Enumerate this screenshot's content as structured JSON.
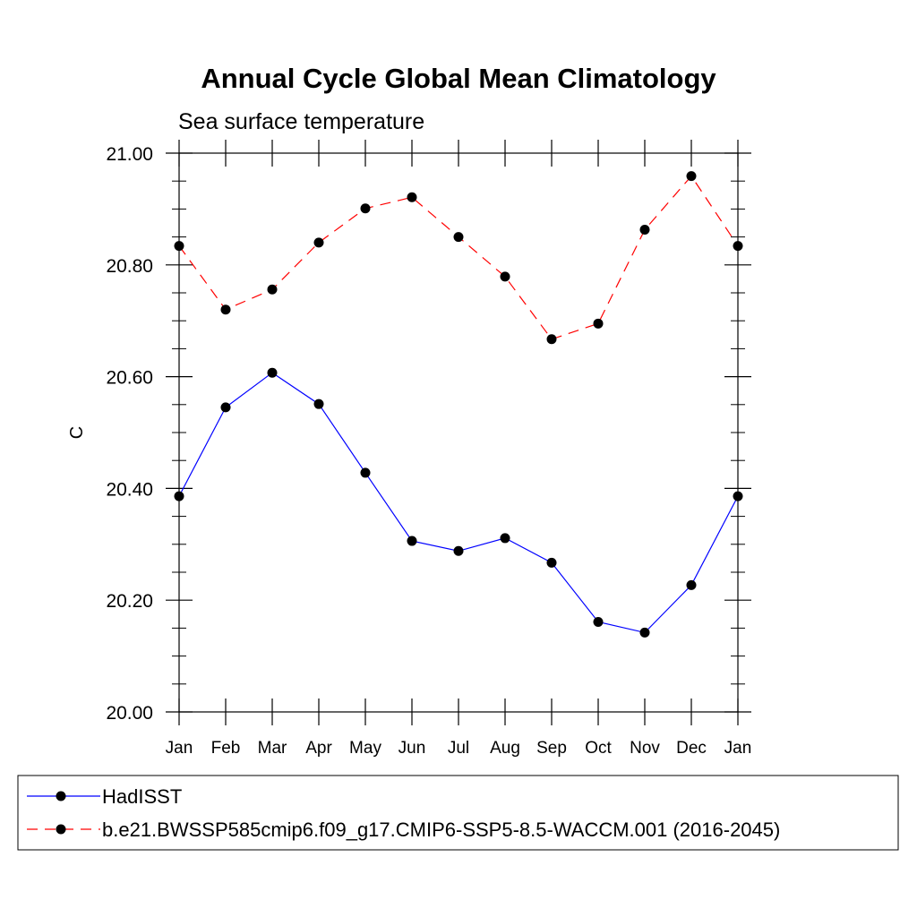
{
  "chart_data": {
    "type": "line",
    "title": "Annual Cycle Global Mean Climatology",
    "subtitle": "Sea surface temperature",
    "xlabel": "",
    "ylabel": "C",
    "categories": [
      "Jan",
      "Feb",
      "Mar",
      "Apr",
      "May",
      "Jun",
      "Jul",
      "Aug",
      "Sep",
      "Oct",
      "Nov",
      "Dec",
      "Jan"
    ],
    "ylim": [
      20.0,
      21.0
    ],
    "yticks": [
      "20.00",
      "20.20",
      "20.40",
      "20.60",
      "20.80",
      "21.00"
    ],
    "grid": false,
    "legend_position": "bottom",
    "series": [
      {
        "name": "HadISST",
        "color": "#0000ff",
        "line_style": "solid",
        "marker": "filled-circle",
        "values": [
          20.386,
          20.545,
          20.607,
          20.551,
          20.428,
          20.306,
          20.288,
          20.311,
          20.267,
          20.161,
          20.142,
          20.227,
          20.386
        ]
      },
      {
        "name": "b.e21.BWSSP585cmip6.f09_g17.CMIP6-SSP5-8.5-WACCM.001 (2016-2045)",
        "color": "#ff0000",
        "line_style": "dashed",
        "marker": "filled-circle",
        "values": [
          20.834,
          20.72,
          20.756,
          20.84,
          20.901,
          20.921,
          20.85,
          20.779,
          20.667,
          20.695,
          20.863,
          20.959,
          20.834
        ]
      }
    ]
  }
}
